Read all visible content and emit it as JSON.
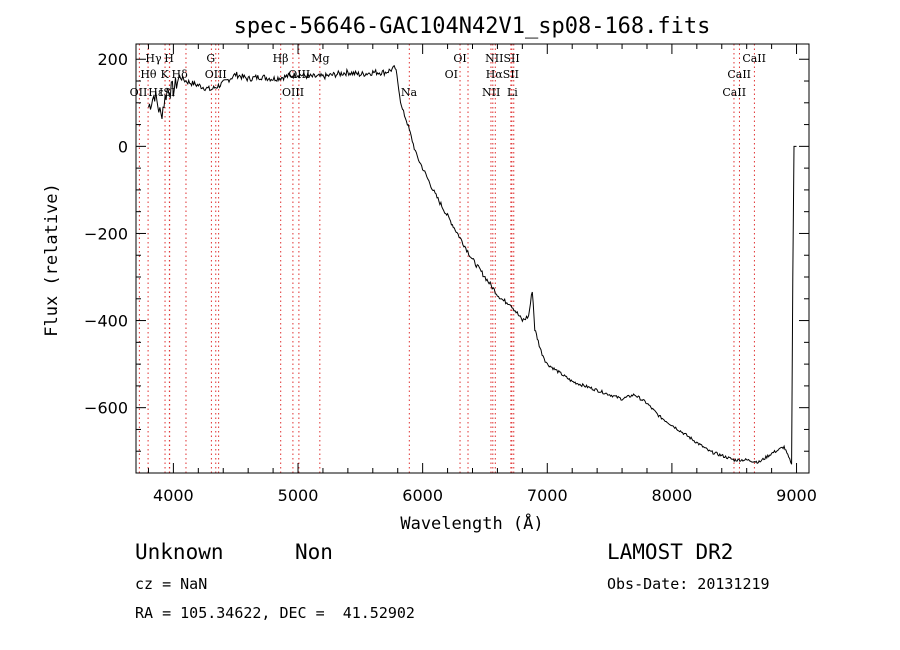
{
  "chart_data": {
    "type": "line",
    "title": "spec-56646-GAC104N42V1_sp08-168.fits",
    "xlabel": "Wavelength (Å)",
    "ylabel": "Flux (relative)",
    "xlim": [
      3700,
      9100
    ],
    "ylim": [
      -750,
      235
    ],
    "xticks": [
      4000,
      5000,
      6000,
      7000,
      8000,
      9000
    ],
    "yticks": [
      200,
      0,
      -200,
      -400,
      -600
    ],
    "grid": false,
    "line_color": "#000000",
    "marker_line_color": "#e03030",
    "series": [
      {
        "x": [
          3800,
          3850,
          3900,
          3950,
          4000,
          4050,
          4100,
          4200,
          4300,
          4400,
          4500,
          4600,
          4700,
          4800,
          4900,
          5000,
          5100,
          5200,
          5300,
          5400,
          5500,
          5600,
          5700,
          5780,
          5800,
          5830,
          5870,
          5900,
          5950,
          6000,
          6050,
          6100,
          6200,
          6300,
          6400,
          6500,
          6550,
          6600,
          6650,
          6700,
          6750,
          6800,
          6850,
          6880,
          6900,
          6920,
          6950,
          7000,
          7100,
          7200,
          7300,
          7400,
          7500,
          7600,
          7700,
          7800,
          7900,
          8000,
          8100,
          8200,
          8300,
          8400,
          8500,
          8600,
          8700,
          8800,
          8900,
          8960,
          8970,
          8980
        ],
        "y": [
          90,
          120,
          70,
          130,
          130,
          160,
          150,
          140,
          130,
          145,
          165,
          155,
          160,
          155,
          160,
          165,
          160,
          160,
          165,
          170,
          165,
          170,
          170,
          180,
          150,
          90,
          60,
          30,
          -20,
          -50,
          -80,
          -110,
          -160,
          -210,
          -260,
          -300,
          -320,
          -340,
          -355,
          -360,
          -380,
          -400,
          -390,
          -330,
          -420,
          -440,
          -470,
          -500,
          -520,
          -540,
          -550,
          -560,
          -570,
          -580,
          -570,
          -590,
          -620,
          -640,
          -660,
          -680,
          -700,
          -710,
          -720,
          -720,
          -725,
          -705,
          -690,
          -730,
          -300,
          0
        ]
      }
    ],
    "line_markers": [
      {
        "name": "Hγ",
        "x": 4340
      },
      {
        "name": "Hθ",
        "x": 3797
      },
      {
        "name": "OII",
        "x": 3727
      },
      {
        "name": "H",
        "x": 3968
      },
      {
        "name": "K",
        "x": 3933
      },
      {
        "name": "Hε",
        "x": 3970
      },
      {
        "name": "Hδ",
        "x": 4101
      },
      {
        "name": "G",
        "x": 4305
      },
      {
        "name": "OIII",
        "x": 4363
      },
      {
        "name": "Hβ",
        "x": 4861
      },
      {
        "name": "OIII",
        "x": 4959
      },
      {
        "name": "OIII",
        "x": 5007
      },
      {
        "name": "Mg",
        "x": 5175
      },
      {
        "name": "Na",
        "x": 5893
      },
      {
        "name": "OI",
        "x": 6300
      },
      {
        "name": "OI",
        "x": 6364
      },
      {
        "name": "NII",
        "x": 6548
      },
      {
        "name": "Hα",
        "x": 6563
      },
      {
        "name": "NII",
        "x": 6583
      },
      {
        "name": "SII",
        "x": 6716
      },
      {
        "name": "Li",
        "x": 6708
      },
      {
        "name": "SII",
        "x": 6731
      },
      {
        "name": "CaII",
        "x": 8498
      },
      {
        "name": "CaII",
        "x": 8542
      },
      {
        "name": "CaII",
        "x": 8662
      }
    ],
    "top_labels": [
      {
        "text": "Hγ",
        "x": 3840,
        "row": 1
      },
      {
        "text": "H",
        "x": 3965,
        "row": 1
      },
      {
        "text": "G",
        "x": 4300,
        "row": 1
      },
      {
        "text": "Hβ",
        "x": 4860,
        "row": 1
      },
      {
        "text": "Mg",
        "x": 5180,
        "row": 1
      },
      {
        "text": "OI",
        "x": 6300,
        "row": 1
      },
      {
        "text": "NIISII",
        "x": 6640,
        "row": 1
      },
      {
        "text": "CaII",
        "x": 8660,
        "row": 1
      },
      {
        "text": "Hθ",
        "x": 3800,
        "row": 2
      },
      {
        "text": "K",
        "x": 3930,
        "row": 2
      },
      {
        "text": "Hδ",
        "x": 4050,
        "row": 2
      },
      {
        "text": "OIII",
        "x": 4340,
        "row": 2
      },
      {
        "text": "OIII",
        "x": 5010,
        "row": 2
      },
      {
        "text": "OI",
        "x": 6230,
        "row": 2
      },
      {
        "text": "HαSII",
        "x": 6640,
        "row": 2
      },
      {
        "text": "CaII",
        "x": 8540,
        "row": 2
      },
      {
        "text": "OII",
        "x": 3720,
        "row": 3
      },
      {
        "text": "Hε",
        "x": 3860,
        "row": 3
      },
      {
        "text": "ISI",
        "x": 3950,
        "row": 3
      },
      {
        "text": "OIII",
        "x": 4960,
        "row": 3
      },
      {
        "text": "Na",
        "x": 5890,
        "row": 3
      },
      {
        "text": "NII",
        "x": 6550,
        "row": 3
      },
      {
        "text": "Li",
        "x": 6720,
        "row": 3
      },
      {
        "text": "CaII",
        "x": 8500,
        "row": 3
      }
    ]
  },
  "footer": {
    "class_label": "Unknown",
    "subclass_label": "Non",
    "survey_label": "LAMOST DR2",
    "cz": "cz = NaN",
    "obs_date": "Obs-Date: 20131219",
    "coords": "RA = 105.34622, DEC =  41.52902"
  }
}
